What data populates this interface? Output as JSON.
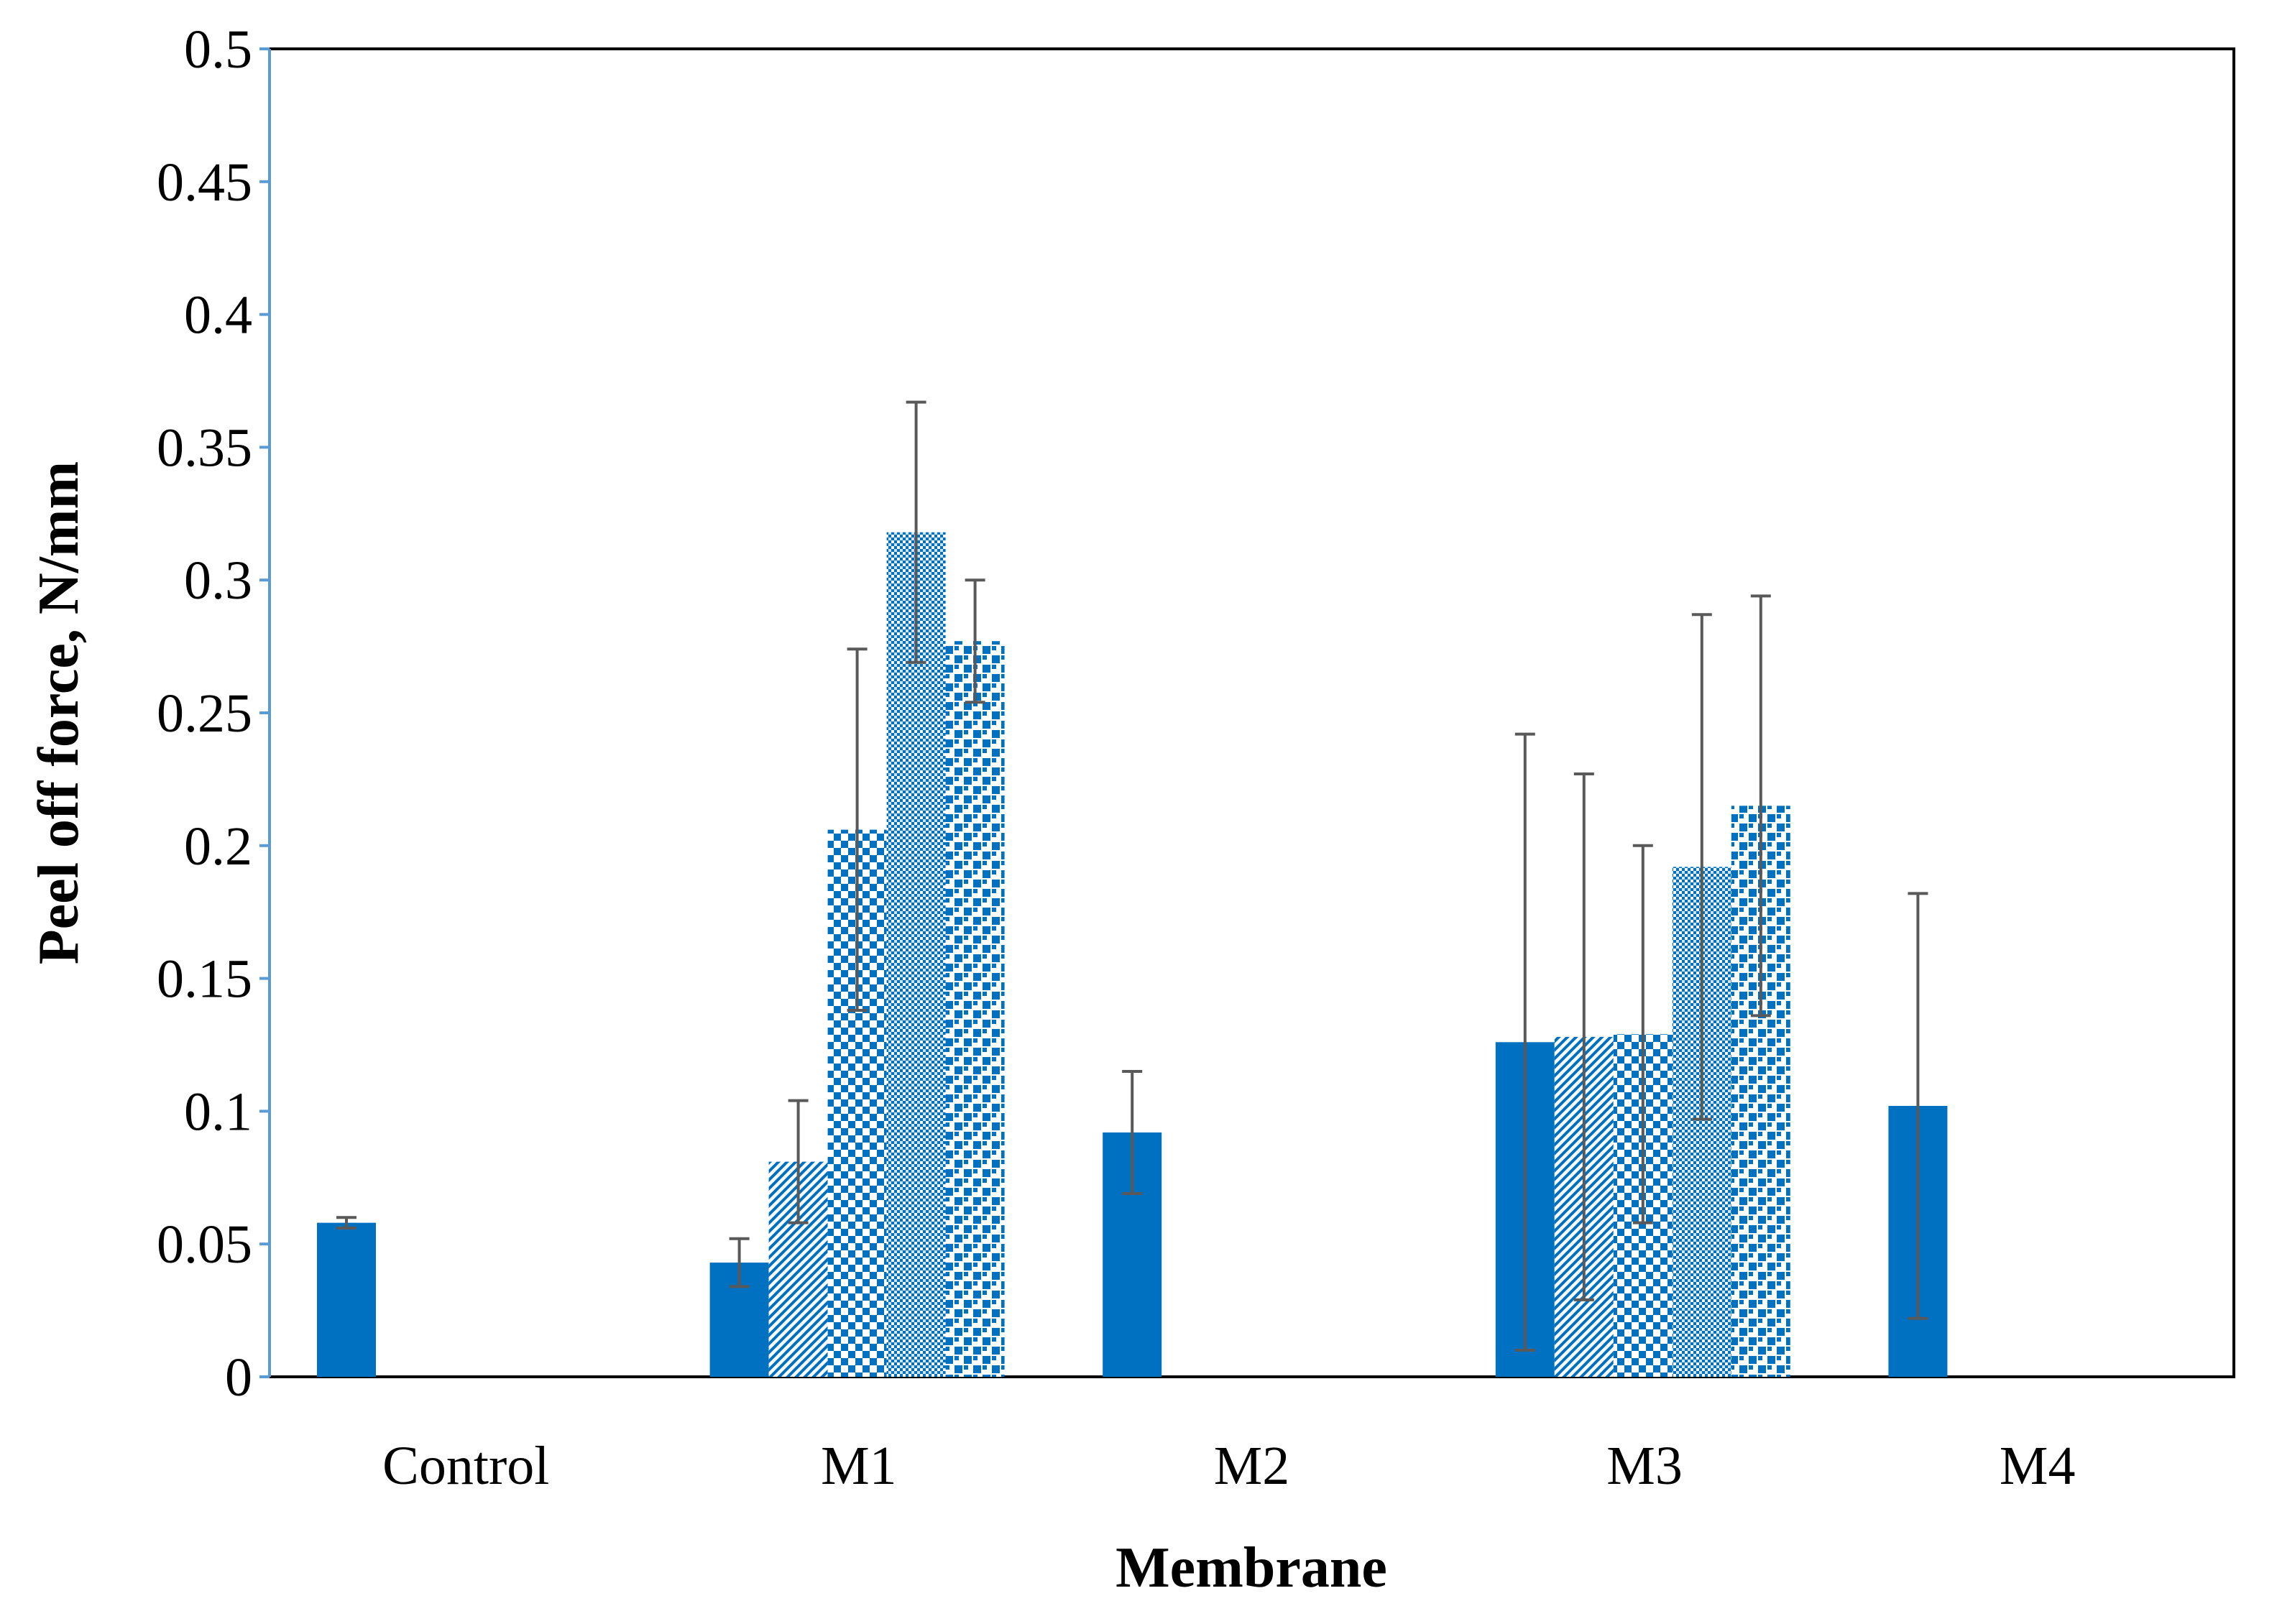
{
  "colors": {
    "bar": "#0070c0",
    "error_bar": "#595959",
    "frame": "#000000",
    "y_axis": "#5b9bd5"
  },
  "chart_data": {
    "type": "bar",
    "title": "",
    "xlabel": "Membrane",
    "ylabel": "Peel off force, N/mm",
    "ylim": [
      0,
      0.5
    ],
    "yticks": [
      0,
      0.05,
      0.1,
      0.15,
      0.2,
      0.25,
      0.3,
      0.35,
      0.4,
      0.45,
      0.5
    ],
    "ytick_labels": [
      "0",
      "0.05",
      "0.1",
      "0.15",
      "0.2",
      "0.25",
      "0.3",
      "0.35",
      "0.4",
      "0.45",
      "0.5"
    ],
    "grid": false,
    "legend": "none",
    "categories": [
      "Control",
      "M1",
      "M2",
      "M3",
      "M4"
    ],
    "series": [
      {
        "name": "series-1",
        "pattern": "solid",
        "values": [
          0.058,
          0.043,
          0.092,
          0.126,
          0.102
        ],
        "errors": [
          0.002,
          0.009,
          0.023,
          0.116,
          0.08
        ]
      },
      {
        "name": "series-2",
        "pattern": "diagonal",
        "values": [
          null,
          0.081,
          null,
          0.128,
          null
        ],
        "errors": [
          null,
          0.023,
          null,
          0.099,
          null
        ]
      },
      {
        "name": "series-3",
        "pattern": "checker",
        "values": [
          null,
          0.206,
          null,
          0.129,
          null
        ],
        "errors": [
          null,
          0.068,
          null,
          0.071,
          null
        ]
      },
      {
        "name": "series-4",
        "pattern": "fine-dots",
        "values": [
          null,
          0.318,
          null,
          0.192,
          null
        ],
        "errors": [
          null,
          0.049,
          null,
          0.095,
          null
        ]
      },
      {
        "name": "series-5",
        "pattern": "large-dots",
        "values": [
          null,
          0.277,
          null,
          0.215,
          null
        ],
        "errors": [
          null,
          0.023,
          null,
          0.079,
          null
        ]
      }
    ]
  }
}
